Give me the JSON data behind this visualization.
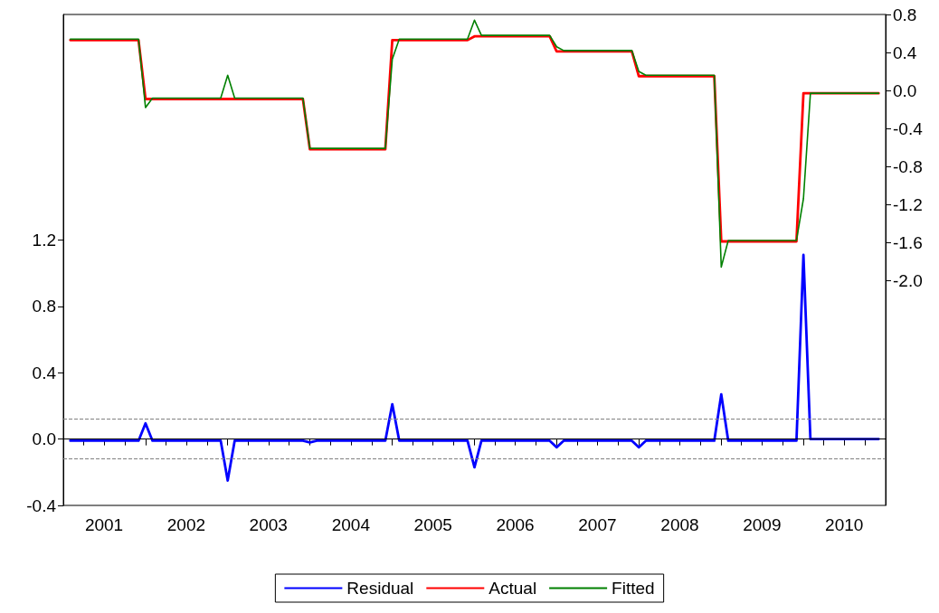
{
  "chart_data": {
    "type": "line",
    "x": [
      "2001-02",
      "2001-03",
      "2001-04",
      "2001-05",
      "2001-06",
      "2001-07",
      "2001-08",
      "2001-09",
      "2001-10",
      "2001-11",
      "2001-12",
      "2002-01",
      "2002-02",
      "2002-03",
      "2002-04",
      "2002-05",
      "2002-06",
      "2002-07",
      "2002-08",
      "2002-09",
      "2002-10",
      "2002-11",
      "2002-12",
      "2003-01",
      "2003-02",
      "2003-03",
      "2003-04",
      "2003-05",
      "2003-06",
      "2003-07",
      "2003-08",
      "2003-09",
      "2003-10",
      "2003-11",
      "2003-12",
      "2004-01",
      "2004-02",
      "2004-03",
      "2004-04",
      "2004-05",
      "2004-06",
      "2004-07",
      "2004-08",
      "2004-09",
      "2004-10",
      "2004-11",
      "2004-12",
      "2005-01",
      "2005-02",
      "2005-03",
      "2005-04",
      "2005-05",
      "2005-06",
      "2005-07",
      "2005-08",
      "2005-09",
      "2005-10",
      "2005-11",
      "2005-12",
      "2006-01",
      "2006-02",
      "2006-03",
      "2006-04",
      "2006-05",
      "2006-06",
      "2006-07",
      "2006-08",
      "2006-09",
      "2006-10",
      "2006-11",
      "2006-12",
      "2007-01",
      "2007-02",
      "2007-03",
      "2007-04",
      "2007-05",
      "2007-06",
      "2007-07",
      "2007-08",
      "2007-09",
      "2007-10",
      "2007-11",
      "2007-12",
      "2008-01",
      "2008-02",
      "2008-03",
      "2008-04",
      "2008-05",
      "2008-06",
      "2008-07",
      "2008-08",
      "2008-09",
      "2008-10",
      "2008-11",
      "2008-12",
      "2009-01",
      "2009-02",
      "2009-03",
      "2009-04",
      "2009-05",
      "2009-06",
      "2009-07",
      "2009-08",
      "2009-09",
      "2009-10",
      "2009-11",
      "2009-12",
      "2010-01",
      "2010-02",
      "2010-03",
      "2010-04",
      "2010-05",
      "2010-06",
      "2010-07",
      "2010-08",
      "2010-09",
      "2010-10",
      "2010-11",
      "2010-12"
    ],
    "series": [
      {
        "name": "Residual",
        "color": "#0000ff",
        "axis": "y",
        "values": [
          -0.01,
          -0.01,
          -0.01,
          -0.01,
          -0.01,
          -0.01,
          -0.01,
          -0.01,
          -0.01,
          -0.01,
          -0.01,
          0.095,
          -0.01,
          -0.01,
          -0.01,
          -0.01,
          -0.01,
          -0.01,
          -0.01,
          -0.01,
          -0.01,
          -0.01,
          -0.01,
          -0.25,
          -0.01,
          -0.01,
          -0.01,
          -0.01,
          -0.01,
          -0.01,
          -0.01,
          -0.01,
          -0.01,
          -0.01,
          -0.01,
          -0.02,
          -0.01,
          -0.01,
          -0.01,
          -0.01,
          -0.01,
          -0.01,
          -0.01,
          -0.01,
          -0.01,
          -0.01,
          -0.01,
          0.21,
          -0.01,
          -0.01,
          -0.01,
          -0.01,
          -0.01,
          -0.01,
          -0.01,
          -0.01,
          -0.01,
          -0.01,
          -0.01,
          -0.17,
          -0.01,
          -0.01,
          -0.01,
          -0.01,
          -0.01,
          -0.01,
          -0.01,
          -0.01,
          -0.01,
          -0.01,
          -0.01,
          -0.05,
          -0.01,
          -0.01,
          -0.01,
          -0.01,
          -0.01,
          -0.01,
          -0.01,
          -0.01,
          -0.01,
          -0.01,
          -0.01,
          -0.05,
          -0.01,
          -0.01,
          -0.01,
          -0.01,
          -0.01,
          -0.01,
          -0.01,
          -0.01,
          -0.01,
          -0.01,
          -0.01,
          0.27,
          -0.01,
          -0.01,
          -0.01,
          -0.01,
          -0.01,
          -0.01,
          -0.01,
          -0.01,
          -0.01,
          -0.01,
          -0.01,
          1.11,
          0.0,
          0.0,
          0.0,
          0.0,
          0.0,
          0.0,
          0.0,
          0.0,
          0.0,
          0.0,
          0.0
        ]
      },
      {
        "name": "Actual",
        "color": "#ff0000",
        "axis": "y2",
        "values": [
          0.53,
          0.53,
          0.53,
          0.53,
          0.53,
          0.53,
          0.53,
          0.53,
          0.53,
          0.53,
          0.53,
          -0.09,
          -0.09,
          -0.09,
          -0.09,
          -0.09,
          -0.09,
          -0.09,
          -0.09,
          -0.09,
          -0.09,
          -0.09,
          -0.09,
          -0.09,
          -0.09,
          -0.09,
          -0.09,
          -0.09,
          -0.09,
          -0.09,
          -0.09,
          -0.09,
          -0.09,
          -0.09,
          -0.09,
          -0.62,
          -0.62,
          -0.62,
          -0.62,
          -0.62,
          -0.62,
          -0.62,
          -0.62,
          -0.62,
          -0.62,
          -0.62,
          -0.62,
          0.53,
          0.53,
          0.53,
          0.53,
          0.53,
          0.53,
          0.53,
          0.53,
          0.53,
          0.53,
          0.53,
          0.53,
          0.57,
          0.57,
          0.57,
          0.57,
          0.57,
          0.57,
          0.57,
          0.57,
          0.57,
          0.57,
          0.57,
          0.57,
          0.41,
          0.41,
          0.41,
          0.41,
          0.41,
          0.41,
          0.41,
          0.41,
          0.41,
          0.41,
          0.41,
          0.41,
          0.15,
          0.15,
          0.15,
          0.15,
          0.15,
          0.15,
          0.15,
          0.15,
          0.15,
          0.15,
          0.15,
          0.15,
          -1.59,
          -1.59,
          -1.59,
          -1.59,
          -1.59,
          -1.59,
          -1.59,
          -1.59,
          -1.59,
          -1.59,
          -1.59,
          -1.59,
          -0.03,
          -0.03,
          -0.03,
          -0.03,
          -0.03,
          -0.03,
          -0.03,
          -0.03,
          -0.03,
          -0.03,
          -0.03,
          -0.03
        ]
      },
      {
        "name": "Fitted",
        "color": "#008000",
        "axis": "y2",
        "values": [
          0.54,
          0.54,
          0.54,
          0.54,
          0.54,
          0.54,
          0.54,
          0.54,
          0.54,
          0.54,
          0.54,
          -0.18,
          -0.08,
          -0.08,
          -0.08,
          -0.08,
          -0.08,
          -0.08,
          -0.08,
          -0.08,
          -0.08,
          -0.08,
          -0.08,
          0.16,
          -0.08,
          -0.08,
          -0.08,
          -0.08,
          -0.08,
          -0.08,
          -0.08,
          -0.08,
          -0.08,
          -0.08,
          -0.08,
          -0.61,
          -0.61,
          -0.61,
          -0.61,
          -0.61,
          -0.61,
          -0.61,
          -0.61,
          -0.61,
          -0.61,
          -0.61,
          -0.61,
          0.33,
          0.54,
          0.54,
          0.54,
          0.54,
          0.54,
          0.54,
          0.54,
          0.54,
          0.54,
          0.54,
          0.54,
          0.74,
          0.58,
          0.58,
          0.58,
          0.58,
          0.58,
          0.58,
          0.58,
          0.58,
          0.58,
          0.58,
          0.58,
          0.46,
          0.42,
          0.42,
          0.42,
          0.42,
          0.42,
          0.42,
          0.42,
          0.42,
          0.42,
          0.42,
          0.42,
          0.2,
          0.16,
          0.16,
          0.16,
          0.16,
          0.16,
          0.16,
          0.16,
          0.16,
          0.16,
          0.16,
          0.16,
          -1.86,
          -1.58,
          -1.58,
          -1.58,
          -1.58,
          -1.58,
          -1.58,
          -1.58,
          -1.58,
          -1.58,
          -1.58,
          -1.58,
          -1.14,
          -0.03,
          -0.03,
          -0.03,
          -0.03,
          -0.03,
          -0.03,
          -0.03,
          -0.03,
          -0.03,
          -0.03,
          -0.03
        ]
      }
    ],
    "xlim": [
      "2001-01",
      "2011-01"
    ],
    "xticks": [
      {
        "value": "2001-04",
        "label": null
      },
      {
        "value": "2001-07",
        "label": "2001"
      },
      {
        "value": "2001-10",
        "label": null
      },
      {
        "value": "2002-01",
        "label": null
      },
      {
        "value": "2002-04",
        "label": null
      },
      {
        "value": "2002-07",
        "label": "2002"
      },
      {
        "value": "2002-10",
        "label": null
      },
      {
        "value": "2003-01",
        "label": null
      },
      {
        "value": "2003-04",
        "label": null
      },
      {
        "value": "2003-07",
        "label": "2003"
      },
      {
        "value": "2003-10",
        "label": null
      },
      {
        "value": "2004-01",
        "label": null
      },
      {
        "value": "2004-04",
        "label": null
      },
      {
        "value": "2004-07",
        "label": "2004"
      },
      {
        "value": "2004-10",
        "label": null
      },
      {
        "value": "2005-01",
        "label": null
      },
      {
        "value": "2005-04",
        "label": null
      },
      {
        "value": "2005-07",
        "label": "2005"
      },
      {
        "value": "2005-10",
        "label": null
      },
      {
        "value": "2006-01",
        "label": null
      },
      {
        "value": "2006-04",
        "label": null
      },
      {
        "value": "2006-07",
        "label": "2006"
      },
      {
        "value": "2006-10",
        "label": null
      },
      {
        "value": "2007-01",
        "label": null
      },
      {
        "value": "2007-04",
        "label": null
      },
      {
        "value": "2007-07",
        "label": "2007"
      },
      {
        "value": "2007-10",
        "label": null
      },
      {
        "value": "2008-01",
        "label": null
      },
      {
        "value": "2008-04",
        "label": null
      },
      {
        "value": "2008-07",
        "label": "2008"
      },
      {
        "value": "2008-10",
        "label": null
      },
      {
        "value": "2009-01",
        "label": null
      },
      {
        "value": "2009-04",
        "label": null
      },
      {
        "value": "2009-07",
        "label": "2009"
      },
      {
        "value": "2009-10",
        "label": null
      },
      {
        "value": "2010-01",
        "label": null
      },
      {
        "value": "2010-04",
        "label": null
      },
      {
        "value": "2010-07",
        "label": "2010"
      },
      {
        "value": "2010-10",
        "label": null
      },
      {
        "value": "2011-01",
        "label": null
      }
    ],
    "ylim": [
      -0.4,
      2.56
    ],
    "yticks": [
      -0.4,
      {
        "value": 0,
        "label": "0.0"
      },
      0.4,
      0.8,
      1.2
    ],
    "y2lim": [
      -4.37,
      0.8
    ],
    "y2ticks": [
      {
        "value": -2,
        "label": "-2.0"
      },
      -1.6,
      -1.2,
      -0.8,
      -0.4,
      {
        "value": 0,
        "label": "0.0"
      },
      0.4,
      0.8
    ],
    "ref_lines": [
      {
        "axis": "y",
        "value": 0,
        "color": "#000000",
        "line_style": "solid"
      },
      {
        "axis": "y",
        "value": 0.12,
        "color": "#808080",
        "line_style": "dashed"
      },
      {
        "axis": "y",
        "value": -0.12,
        "color": "#808080",
        "line_style": "dashed"
      }
    ],
    "grid": false,
    "legend": "bottom",
    "marker": "none",
    "line_style": "solid"
  }
}
